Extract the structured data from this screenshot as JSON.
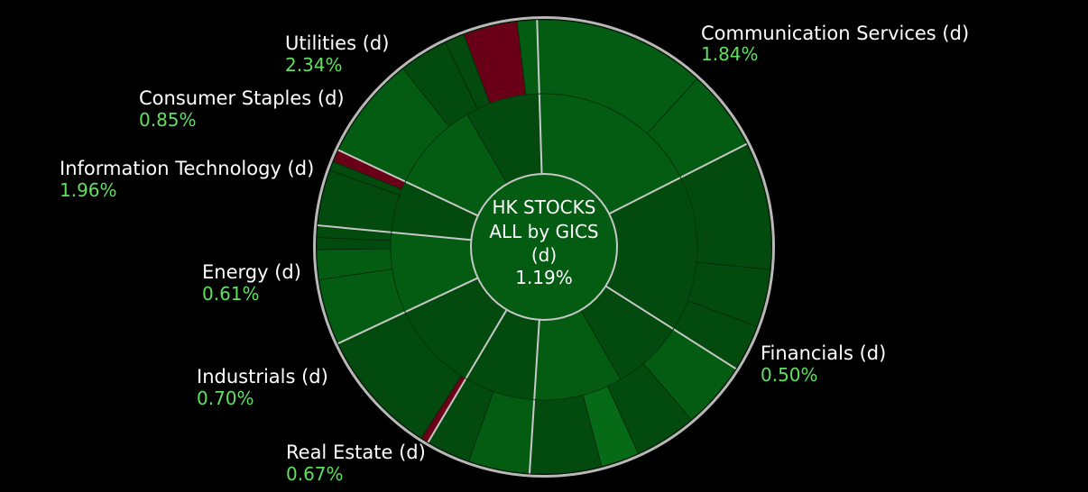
{
  "chart_data": {
    "type": "sunburst",
    "center": {
      "title_lines": [
        "HK STOCKS",
        "ALL by GICS",
        "(d)"
      ],
      "value": "1.19%"
    },
    "colors": {
      "background": "#000000",
      "center": "#035c12",
      "positive_dark": "#034a0e",
      "positive_mid": "#045c12",
      "positive_light": "#066a16",
      "negative": "#6a0018",
      "separator": "#c8c8c8",
      "value_text": "#5fe05f",
      "name_text": "#ffffff"
    },
    "sectors": [
      {
        "name": "Communication Services (d)",
        "value": "1.84%",
        "pct": 1.84,
        "weight": 18
      },
      {
        "name": "Financials (d)",
        "value": "0.50%",
        "pct": 0.5,
        "weight": 16.5
      },
      {
        "name": "Real Estate (d)",
        "value": "0.67%",
        "pct": 0.67,
        "weight": 17
      },
      {
        "name": "Industrials (d)",
        "value": "0.70%",
        "pct": 0.7,
        "weight": 7.5
      },
      {
        "name": "Energy (d)",
        "value": "0.61%",
        "pct": 0.61,
        "weight": 9.5
      },
      {
        "name": "Information Technology (d)",
        "value": "1.96%",
        "pct": 1.96,
        "weight": 8.5
      },
      {
        "name": "Consumer Staples (d)",
        "value": "0.85%",
        "pct": 0.85,
        "weight": 5.5
      },
      {
        "name": "Utilities (d)",
        "value": "2.34%",
        "pct": 2.34,
        "weight": 17.5
      }
    ]
  }
}
